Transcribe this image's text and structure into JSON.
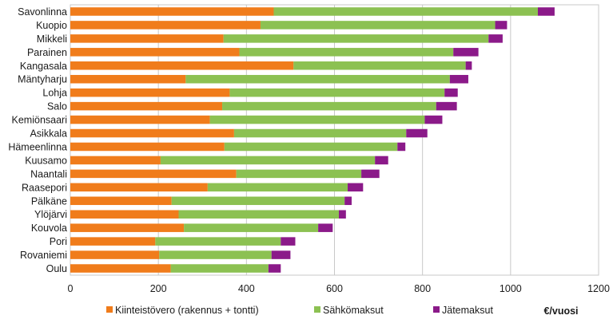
{
  "chart_data": {
    "type": "bar",
    "orientation": "horizontal",
    "stacked": true,
    "categories": [
      "Savonlinna",
      "Kuopio",
      "Mikkeli",
      "Parainen",
      "Kangasala",
      "Mäntyharju",
      "Lohja",
      "Salo",
      "Kemiönsaari",
      "Asikkala",
      "Hämeenlinna",
      "Kuusamo",
      "Naantali",
      "Raasepori",
      "Pälkäne",
      "Ylöjärvi",
      "Kouvola",
      "Pori",
      "Rovaniemi",
      "Oulu"
    ],
    "series": [
      {
        "name": "Kiinteistövero (rakennus + tontti)",
        "color": "#f07c1b",
        "values": [
          462,
          432,
          348,
          384,
          507,
          262,
          362,
          345,
          317,
          372,
          350,
          205,
          377,
          312,
          230,
          246,
          258,
          193,
          202,
          228
        ]
      },
      {
        "name": "Sähkömaksut",
        "color": "#8cc152",
        "values": [
          600,
          533,
          602,
          486,
          391,
          600,
          488,
          486,
          488,
          391,
          393,
          487,
          284,
          318,
          393,
          364,
          305,
          285,
          255,
          222
        ]
      },
      {
        "name": "Jätemaksut",
        "color": "#8b1a89",
        "values": [
          38,
          27,
          32,
          57,
          14,
          42,
          30,
          47,
          40,
          48,
          18,
          30,
          41,
          35,
          16,
          16,
          33,
          33,
          43,
          28
        ]
      }
    ],
    "xlabel": "€/vuosi",
    "xlim": [
      0,
      1200
    ],
    "xticks": [
      0,
      200,
      400,
      600,
      800,
      1000,
      1200
    ],
    "grid": "vertical",
    "legend_position": "bottom"
  }
}
